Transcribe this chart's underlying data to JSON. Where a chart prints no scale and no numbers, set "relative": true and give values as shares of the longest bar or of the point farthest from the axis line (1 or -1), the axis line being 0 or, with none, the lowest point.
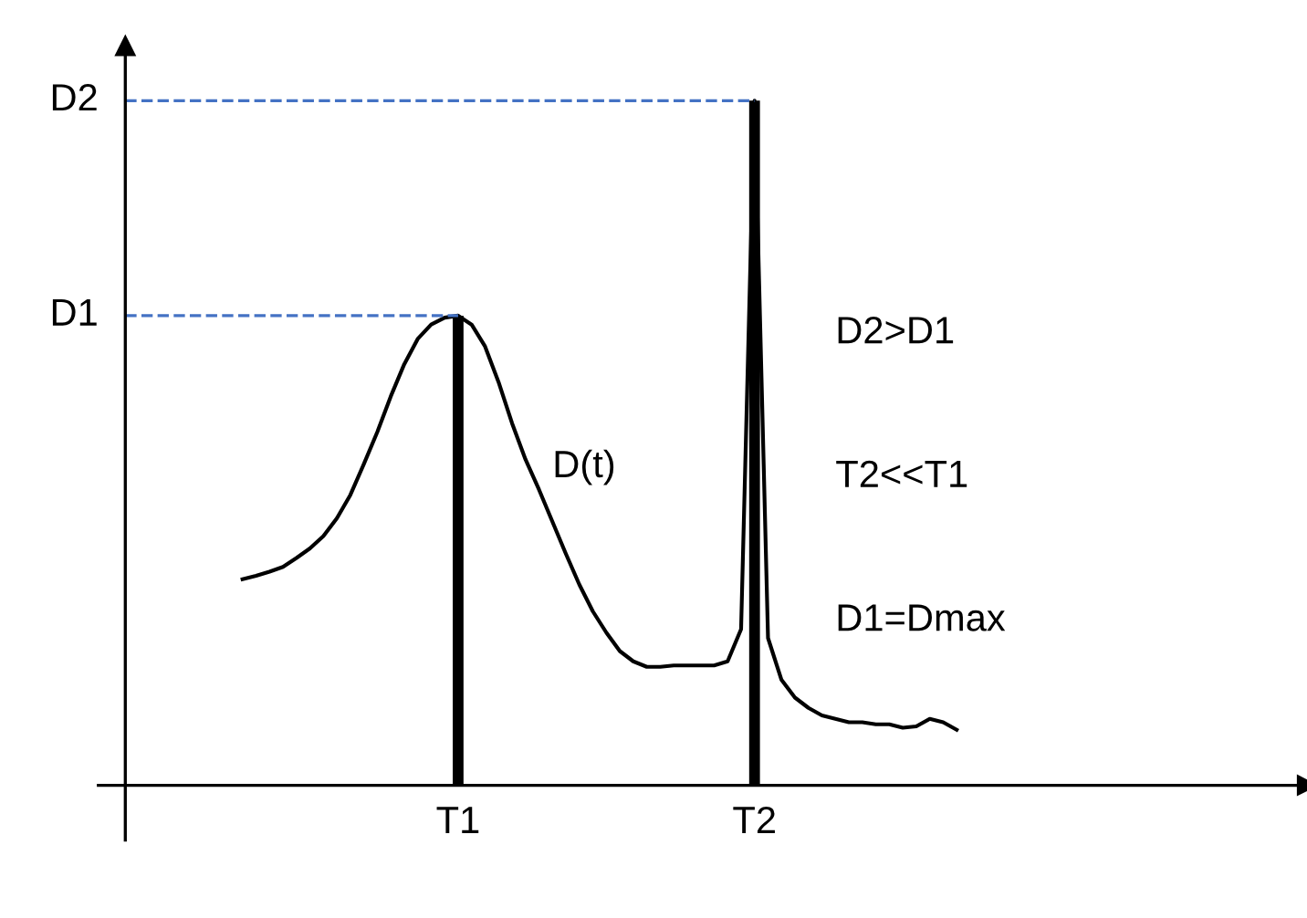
{
  "chart_data": {
    "type": "line",
    "relative": true,
    "grid": false,
    "marker": "none",
    "line_style": "solid",
    "categories": [
      null,
      null,
      null,
      null,
      null,
      null,
      null,
      null,
      null,
      null,
      null,
      null,
      null,
      null,
      null,
      null,
      null,
      null,
      null,
      null,
      null,
      null,
      null,
      null,
      "T1",
      null,
      null,
      null,
      null,
      null,
      null,
      null,
      null,
      null,
      null,
      null,
      null,
      null,
      null,
      null,
      null,
      null,
      null,
      null,
      null,
      null,
      "T2",
      null,
      null,
      null,
      null,
      null,
      null,
      null,
      null,
      null,
      null,
      null,
      null,
      null,
      null,
      null,
      null,
      null,
      null,
      null,
      null,
      null,
      null,
      null,
      null,
      null,
      null,
      null,
      null,
      null,
      null,
      null,
      null,
      null,
      null,
      null,
      null
    ],
    "series": [
      {
        "color": "#000000",
        "values": [
          null,
          null,
          null,
          null,
          null,
          null,
          null,
          null,
          0.301,
          0.306,
          0.312,
          0.319,
          0.332,
          0.346,
          0.364,
          0.39,
          0.424,
          0.469,
          0.516,
          0.568,
          0.615,
          0.652,
          0.673,
          0.683,
          0.686,
          0.673,
          0.641,
          0.589,
          0.529,
          0.476,
          0.432,
          0.385,
          0.338,
          0.293,
          0.254,
          0.223,
          0.196,
          0.181,
          0.173,
          0.173,
          0.175,
          0.175,
          0.175,
          0.175,
          0.181,
          0.228,
          1.0,
          0.215,
          0.154,
          0.128,
          0.113,
          0.102,
          0.097,
          0.092,
          0.092,
          0.089,
          0.089,
          0.084,
          0.086,
          0.097,
          0.092,
          0.081,
          null,
          null,
          null,
          null,
          null,
          null,
          null,
          null,
          null,
          null,
          null,
          null,
          null,
          null,
          null,
          null,
          null,
          null,
          null,
          null,
          null
        ]
      },
      {
        "type": "bar",
        "color": "#000000",
        "values": [
          null,
          null,
          null,
          null,
          null,
          null,
          null,
          null,
          null,
          null,
          null,
          null,
          null,
          null,
          null,
          null,
          null,
          null,
          null,
          null,
          null,
          null,
          null,
          null,
          0.686,
          null,
          null,
          null,
          null,
          null,
          null,
          null,
          null,
          null,
          null,
          null,
          null,
          null,
          null,
          null,
          null,
          null,
          null,
          null,
          null,
          null,
          1.0,
          null,
          null,
          null,
          null,
          null,
          null,
          null,
          null,
          null,
          null,
          null,
          null,
          null,
          null,
          null,
          null,
          null,
          null,
          null,
          null,
          null,
          null,
          null,
          null,
          null,
          null,
          null,
          null,
          null,
          null,
          null,
          null,
          null,
          null,
          null,
          null
        ]
      }
    ],
    "ref_lines": [
      {
        "axis": "y",
        "value": 0.686,
        "label": "D1",
        "color": "#4472c4",
        "line_style": "dashed"
      },
      {
        "axis": "y",
        "value": 1.0,
        "label": "D2",
        "color": "#4472c4",
        "line_style": "dashed"
      }
    ],
    "annotations": [
      "D(t)",
      "D2>D1",
      "T2<<T1",
      "D1=Dmax"
    ]
  }
}
